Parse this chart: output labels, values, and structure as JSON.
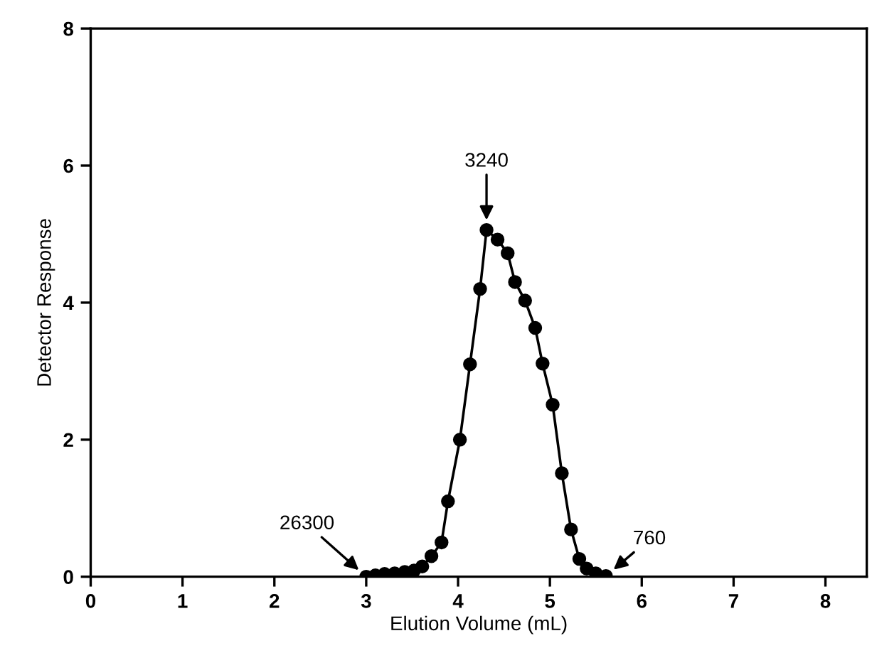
{
  "chart_data": {
    "type": "line",
    "xlabel": "Elution Volume (mL)",
    "ylabel": "Detector Response",
    "series": [
      {
        "color": "#000000",
        "x": [
          3.0,
          3.1,
          3.2,
          3.31,
          3.42,
          3.52,
          3.61,
          3.71,
          3.82,
          3.89,
          4.02,
          4.13,
          4.24,
          4.31,
          4.43,
          4.54,
          4.62,
          4.73,
          4.84,
          4.92,
          5.03,
          5.13,
          5.23,
          5.32,
          5.4,
          5.5,
          5.61
        ],
        "values": [
          0,
          0.02,
          0.04,
          0.05,
          0.07,
          0.09,
          0.15,
          0.3,
          0.5,
          1.1,
          2.0,
          3.1,
          4.2,
          5.06,
          4.92,
          4.72,
          4.3,
          4.03,
          3.63,
          3.11,
          2.51,
          1.51,
          0.69,
          0.26,
          0.12,
          0.05,
          0.01
        ]
      }
    ],
    "annotations": [
      {
        "text": "3240",
        "x": 4.31,
        "y": 5.06
      },
      {
        "text": "26300",
        "x": 3.0,
        "y": 0
      },
      {
        "text": "760",
        "x": 5.61,
        "y": 0.01
      }
    ],
    "xlim": [
      0,
      8.45
    ],
    "xticks": [
      0,
      1,
      2,
      3,
      4,
      5,
      6,
      7,
      8
    ],
    "ylim": [
      0,
      8
    ],
    "yticks": [
      0,
      2,
      4,
      6,
      8
    ],
    "marker": "circle",
    "line_style": "solid",
    "grid": false,
    "legend": false
  }
}
